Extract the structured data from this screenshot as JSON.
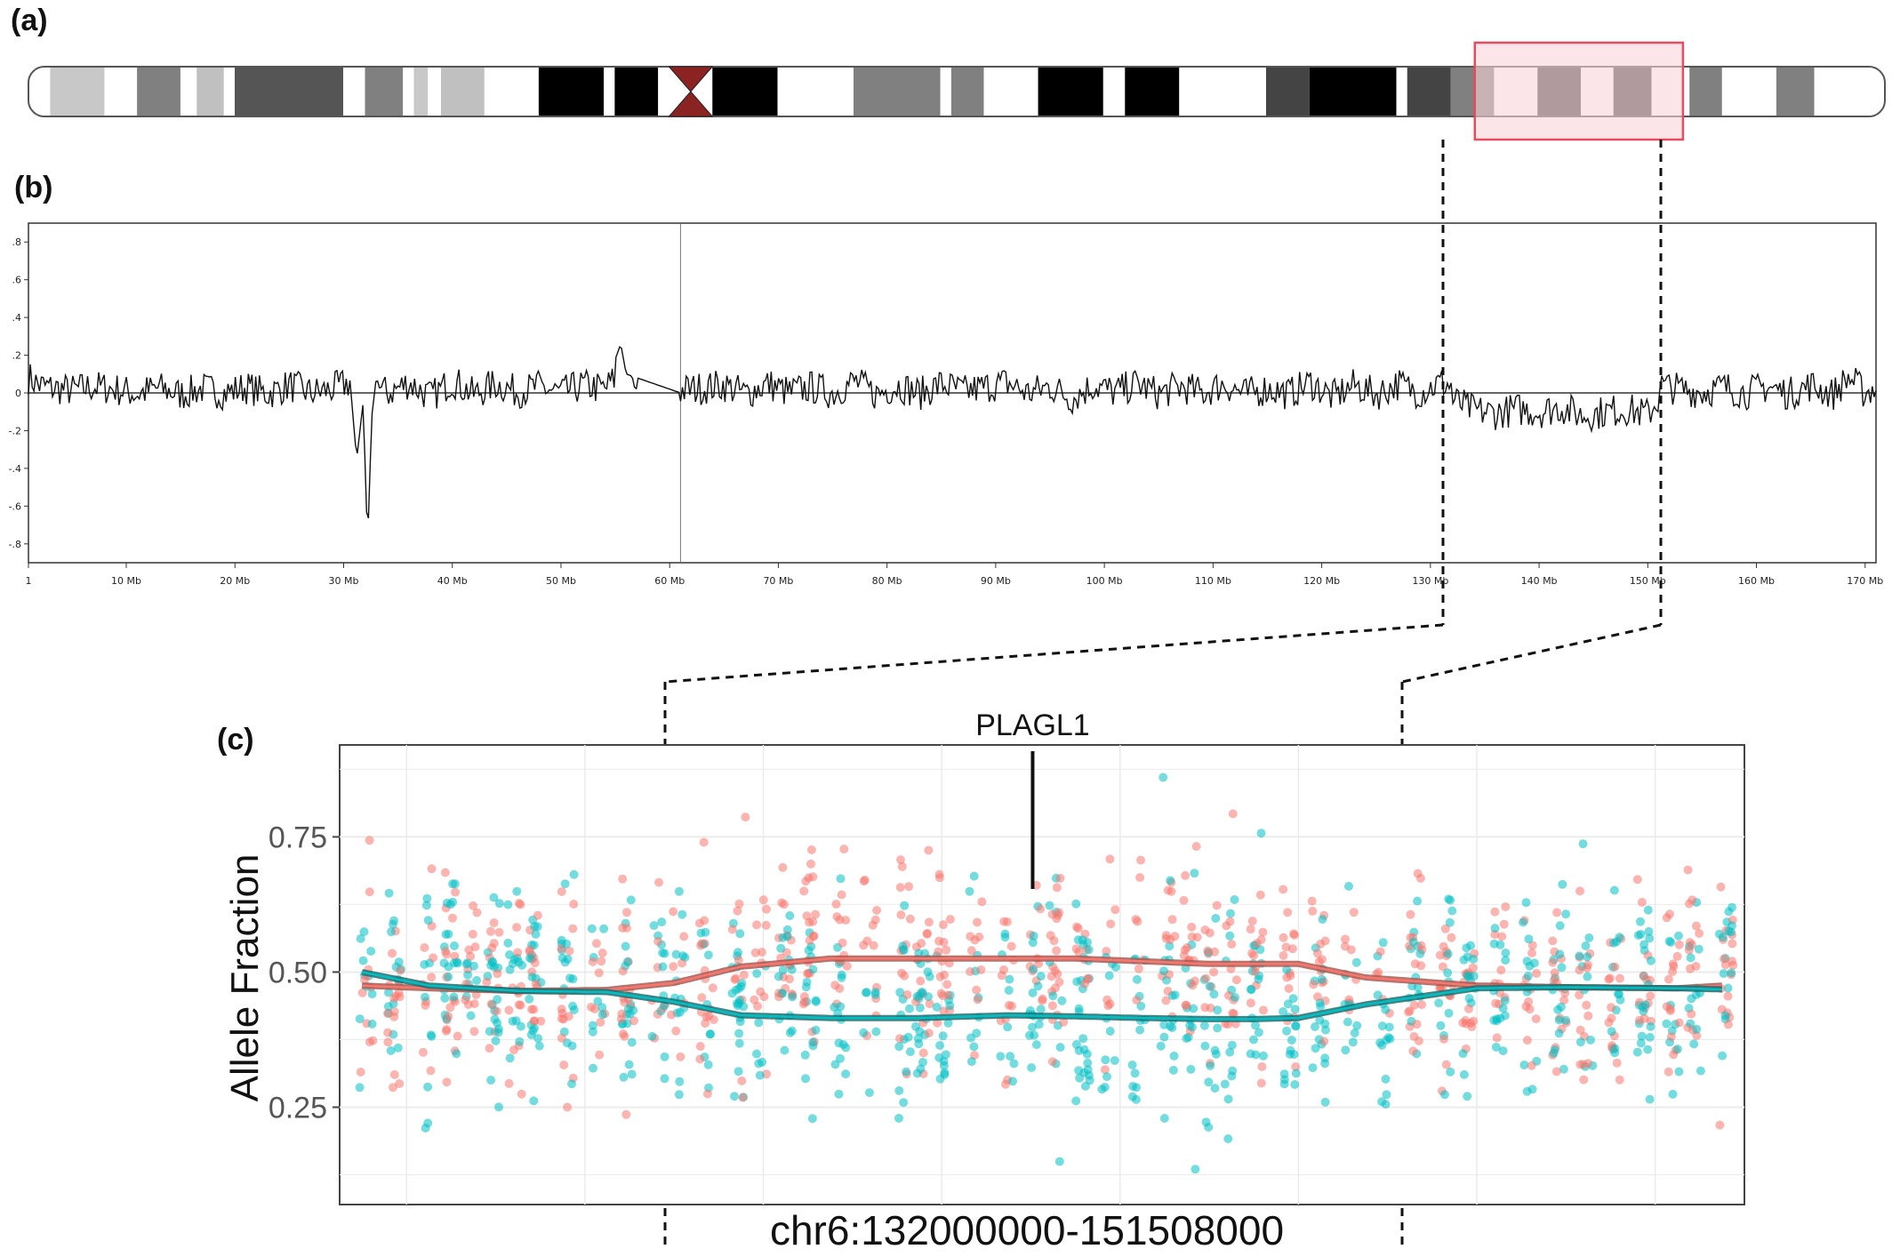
{
  "panels": {
    "a": {
      "label": "(a)"
    },
    "b": {
      "label": "(b)"
    },
    "c": {
      "label": "(c)"
    }
  },
  "colors": {
    "centromere": "#8b2323",
    "highlight_fill": "#f9d3d8",
    "highlight_stroke": "#e84a5f",
    "series_red": "#f8766d",
    "series_teal": "#00bfc4"
  },
  "ideogram": {
    "bands": [
      {
        "start": 0.0,
        "end": 2.0,
        "shade": "#ffffff"
      },
      {
        "start": 2.0,
        "end": 7.0,
        "shade": "#c8c8c8"
      },
      {
        "start": 7.0,
        "end": 10.0,
        "shade": "#ffffff"
      },
      {
        "start": 10.0,
        "end": 14.0,
        "shade": "#808080"
      },
      {
        "start": 14.0,
        "end": 15.5,
        "shade": "#ffffff"
      },
      {
        "start": 15.5,
        "end": 18.0,
        "shade": "#c0c0c0"
      },
      {
        "start": 18.0,
        "end": 19.0,
        "shade": "#ffffff"
      },
      {
        "start": 19.0,
        "end": 29.0,
        "shade": "#555555"
      },
      {
        "start": 29.0,
        "end": 31.0,
        "shade": "#ffffff"
      },
      {
        "start": 31.0,
        "end": 34.5,
        "shade": "#808080"
      },
      {
        "start": 34.5,
        "end": 35.5,
        "shade": "#ffffff"
      },
      {
        "start": 35.5,
        "end": 36.8,
        "shade": "#c8c8c8"
      },
      {
        "start": 36.8,
        "end": 38.0,
        "shade": "#ffffff"
      },
      {
        "start": 38.0,
        "end": 42.0,
        "shade": "#c0c0c0"
      },
      {
        "start": 42.0,
        "end": 47.0,
        "shade": "#ffffff"
      },
      {
        "start": 47.0,
        "end": 53.0,
        "shade": "#000000"
      },
      {
        "start": 53.0,
        "end": 54.0,
        "shade": "#ffffff"
      },
      {
        "start": 54.0,
        "end": 58.0,
        "shade": "#000000"
      },
      {
        "start": 58.0,
        "end": 59.0,
        "shade": "#ffffff"
      },
      {
        "start": 63.0,
        "end": 69.0,
        "shade": "#000000"
      },
      {
        "start": 69.0,
        "end": 76.0,
        "shade": "#ffffff"
      },
      {
        "start": 76.0,
        "end": 84.0,
        "shade": "#808080"
      },
      {
        "start": 84.0,
        "end": 85.0,
        "shade": "#ffffff"
      },
      {
        "start": 85.0,
        "end": 88.0,
        "shade": "#808080"
      },
      {
        "start": 88.0,
        "end": 93.0,
        "shade": "#ffffff"
      },
      {
        "start": 93.0,
        "end": 99.0,
        "shade": "#000000"
      },
      {
        "start": 99.0,
        "end": 101.0,
        "shade": "#ffffff"
      },
      {
        "start": 101.0,
        "end": 106.0,
        "shade": "#000000"
      },
      {
        "start": 106.0,
        "end": 114.0,
        "shade": "#ffffff"
      },
      {
        "start": 114.0,
        "end": 118.0,
        "shade": "#444444"
      },
      {
        "start": 118.0,
        "end": 126.0,
        "shade": "#000000"
      },
      {
        "start": 126.0,
        "end": 127.0,
        "shade": "#ffffff"
      },
      {
        "start": 127.0,
        "end": 131.0,
        "shade": "#444444"
      },
      {
        "start": 131.0,
        "end": 135.0,
        "shade": "#808080"
      },
      {
        "start": 135.0,
        "end": 139.0,
        "shade": "#ffffff"
      },
      {
        "start": 139.0,
        "end": 143.0,
        "shade": "#444444"
      },
      {
        "start": 143.0,
        "end": 146.0,
        "shade": "#ffffff"
      },
      {
        "start": 146.0,
        "end": 149.5,
        "shade": "#444444"
      },
      {
        "start": 149.5,
        "end": 153.0,
        "shade": "#ffffff"
      },
      {
        "start": 153.0,
        "end": 156.0,
        "shade": "#808080"
      },
      {
        "start": 156.0,
        "end": 161.0,
        "shade": "#ffffff"
      },
      {
        "start": 161.0,
        "end": 164.5,
        "shade": "#808080"
      },
      {
        "start": 164.5,
        "end": 171.0,
        "shade": "#ffffff"
      }
    ],
    "centromere": [
      59.0,
      61.0,
      63.0
    ],
    "highlight": [
      132.0,
      151.5
    ]
  },
  "chart_data": [
    {
      "type": "line",
      "panel": "(b)",
      "xlabel": "",
      "ylabel": "",
      "xlim": [
        1,
        171
      ],
      "ylim": [
        -0.9,
        0.9
      ],
      "x_ticks": [
        "1",
        "10 Mb",
        "20 Mb",
        "30 Mb",
        "40 Mb",
        "50 Mb",
        "60 Mb",
        "70 Mb",
        "80 Mb",
        "90 Mb",
        "100 Mb",
        "110 Mb",
        "120 Mb",
        "130 Mb",
        "140 Mb",
        "150 Mb",
        "160 Mb",
        "170 Mb"
      ],
      "x_tick_values": [
        1,
        10,
        20,
        30,
        40,
        50,
        60,
        70,
        80,
        90,
        100,
        110,
        120,
        130,
        140,
        150,
        160,
        170
      ],
      "y_ticks": [
        ".8",
        ".6",
        ".4",
        ".2",
        "0",
        "-.2",
        "-.4",
        "-.6",
        "-.8"
      ],
      "y_tick_values": [
        0.8,
        0.6,
        0.4,
        0.2,
        0,
        -0.2,
        -0.4,
        -0.6,
        -0.8
      ],
      "series": [
        {
          "x": [
            1,
            2,
            3,
            5,
            7,
            9,
            11,
            13,
            15,
            17,
            19,
            21,
            23,
            25,
            27,
            29,
            30.5,
            31.2,
            31.8,
            32.2,
            32.6,
            33,
            34,
            36,
            38,
            40,
            42,
            44,
            46,
            48,
            50,
            52,
            54,
            55.5,
            56,
            57,
            61,
            63,
            65,
            67,
            69,
            71,
            73,
            75,
            77,
            79,
            81,
            83,
            85,
            87,
            89,
            91,
            93,
            95,
            97,
            99,
            101,
            103,
            105,
            107,
            109,
            111,
            113,
            115,
            117,
            119,
            121,
            123,
            125,
            127,
            129,
            131,
            132,
            134,
            136,
            138,
            140,
            142,
            144,
            146,
            148,
            150,
            151,
            153,
            155,
            157,
            159,
            161,
            163,
            165,
            167,
            168.5,
            170,
            171
          ],
          "y": [
            0.2,
            0.08,
            0.04,
            0.0,
            0.06,
            0.02,
            -0.05,
            0.04,
            -0.06,
            0.03,
            -0.04,
            0.05,
            -0.05,
            0.08,
            -0.04,
            0.02,
            0.12,
            -0.35,
            -0.05,
            -0.8,
            -0.12,
            0.08,
            -0.05,
            0.12,
            -0.1,
            0.15,
            -0.06,
            0.1,
            -0.02,
            0.06,
            -0.04,
            0.08,
            0.02,
            0.26,
            0.1,
            0.08,
            0.0,
            0.04,
            0.08,
            -0.05,
            0.1,
            -0.03,
            0.05,
            -0.04,
            0.14,
            -0.06,
            0.08,
            -0.05,
            0.1,
            -0.02,
            0.05,
            0.12,
            -0.04,
            0.06,
            -0.12,
            0.08,
            -0.03,
            0.1,
            -0.05,
            0.06,
            -0.04,
            0.1,
            -0.06,
            0.03,
            -0.05,
            0.12,
            -0.1,
            0.08,
            -0.06,
            0.1,
            -0.03,
            0.12,
            0.06,
            -0.1,
            -0.14,
            -0.08,
            -0.12,
            -0.05,
            -0.18,
            -0.12,
            -0.08,
            -0.16,
            0.08,
            0.02,
            -0.02,
            0.05,
            -0.04,
            0.06,
            -0.05,
            0.08,
            -0.06,
            0.2,
            -0.04,
            0.05
          ]
        }
      ]
    },
    {
      "type": "scatter",
      "panel": "(c)",
      "title": "",
      "xlabel": "chr6:132000000-151508000",
      "ylabel": "Allele Fraction",
      "y_ticks": [
        "0.75",
        "0.50",
        "0.25"
      ],
      "y_tick_values": [
        0.75,
        0.5,
        0.25
      ],
      "ylim": [
        0.07,
        0.92
      ],
      "xlim": [
        126.0,
        157.5
      ],
      "region_bounds": [
        132.0,
        151.508
      ],
      "annotation": {
        "text": "PLAGL1",
        "x": 141.5
      },
      "series": [
        {
          "color_key": "series_red",
          "trend_x": [
            126.5,
            128.0,
            130.0,
            132.0,
            133.5,
            135.0,
            137.0,
            139.0,
            141.0,
            142.5,
            144.0,
            145.5,
            146.5,
            147.5,
            149.0,
            151.5,
            153.5,
            156.0,
            157.0
          ],
          "trend_y": [
            0.475,
            0.47,
            0.465,
            0.467,
            0.48,
            0.51,
            0.525,
            0.525,
            0.525,
            0.525,
            0.52,
            0.515,
            0.515,
            0.515,
            0.49,
            0.475,
            0.472,
            0.47,
            0.475
          ]
        },
        {
          "color_key": "series_teal",
          "trend_x": [
            126.5,
            128.0,
            130.0,
            132.0,
            133.5,
            135.0,
            137.0,
            139.0,
            141.0,
            142.5,
            144.0,
            145.5,
            146.5,
            147.5,
            149.0,
            151.5,
            153.5,
            156.0,
            157.0
          ],
          "trend_y": [
            0.5,
            0.475,
            0.465,
            0.463,
            0.445,
            0.42,
            0.415,
            0.415,
            0.42,
            0.418,
            0.415,
            0.413,
            0.413,
            0.415,
            0.44,
            0.47,
            0.472,
            0.47,
            0.468
          ]
        }
      ]
    }
  ]
}
